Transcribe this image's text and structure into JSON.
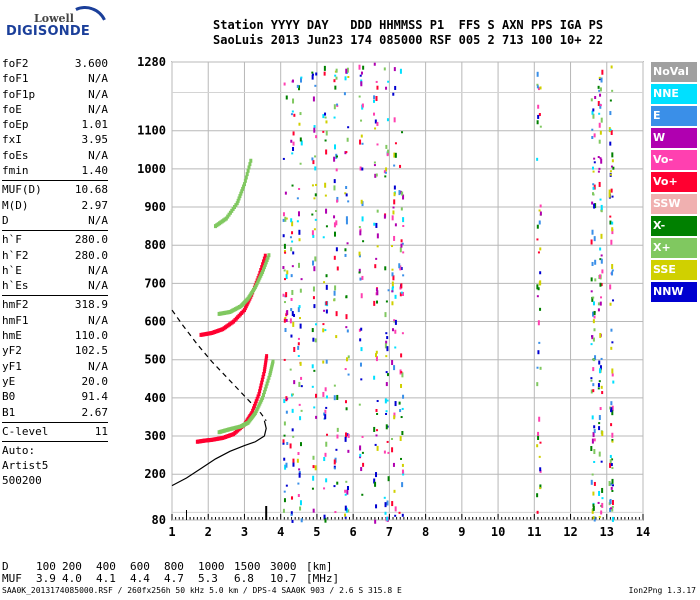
{
  "logo": {
    "top_text": "Lowell",
    "bottom_text": "DIGISONDE"
  },
  "header": {
    "line1": "Station YYYY DAY   DDD HHMMSS P1  FFS S AXN PPS IGA PS",
    "line2": "SaoLuis 2013 Jun23 174 085000 RSF 005 2 713 100 10+ 22"
  },
  "params": {
    "group1": [
      {
        "name": "foF2",
        "value": "3.600"
      },
      {
        "name": "foF1",
        "value": "N/A"
      },
      {
        "name": "foF1p",
        "value": "N/A"
      },
      {
        "name": "foE",
        "value": "N/A"
      },
      {
        "name": "foEp",
        "value": "1.01"
      },
      {
        "name": "fxI",
        "value": "3.95"
      },
      {
        "name": "foEs",
        "value": "N/A"
      },
      {
        "name": "fmin",
        "value": "1.40"
      }
    ],
    "group2": [
      {
        "name": "MUF(D)",
        "value": "10.68"
      },
      {
        "name": "M(D)",
        "value": "2.97"
      },
      {
        "name": "D",
        "value": "N/A"
      }
    ],
    "group3": [
      {
        "name": "h`F",
        "value": "280.0"
      },
      {
        "name": "h`F2",
        "value": "280.0"
      },
      {
        "name": "h`E",
        "value": "N/A"
      },
      {
        "name": "h`Es",
        "value": "N/A"
      }
    ],
    "group4": [
      {
        "name": "hmF2",
        "value": "318.9"
      },
      {
        "name": "hmF1",
        "value": "N/A"
      },
      {
        "name": "hmE",
        "value": "110.0"
      },
      {
        "name": "yF2",
        "value": "102.5"
      },
      {
        "name": "yF1",
        "value": "N/A"
      },
      {
        "name": "yE",
        "value": "20.0"
      },
      {
        "name": "B0",
        "value": "91.4"
      },
      {
        "name": "B1",
        "value": "2.67"
      }
    ],
    "group5": [
      {
        "name": "C-level",
        "value": "11"
      }
    ],
    "auto_label": "Auto:",
    "artist": "Artist5",
    "artist_code": "500200"
  },
  "legend": [
    {
      "label": "NoVal",
      "color": "#a0a0a0"
    },
    {
      "label": "NNE",
      "color": "#00e0ff"
    },
    {
      "label": "E",
      "color": "#3a8fe8"
    },
    {
      "label": "W",
      "color": "#b000b0"
    },
    {
      "label": "Vo-",
      "color": "#ff40b0"
    },
    {
      "label": "Vo+",
      "color": "#ff0030"
    },
    {
      "label": "SSW",
      "color": "#f0b0b0"
    },
    {
      "label": "X-",
      "color": "#008000"
    },
    {
      "label": "X+",
      "color": "#80c860"
    },
    {
      "label": "SSE",
      "color": "#d0d000"
    },
    {
      "label": "NNW",
      "color": "#0000d0"
    }
  ],
  "footer": {
    "d_label": "D",
    "d_values": [
      "100",
      "200",
      "400",
      "600",
      "800",
      "1000",
      "1500",
      "3000"
    ],
    "d_unit": "[km]",
    "muf_label": "MUF",
    "muf_values": [
      "3.9",
      "4.0",
      "4.1",
      "4.4",
      "4.7",
      "5.3",
      "6.8",
      "10.7"
    ],
    "muf_unit": "[MHz]",
    "source_line": "SAA0K_2013174085000.RSF / 260fx256h 50 kHz 5.0 km / DPS-4 SAA0K 903 / 2.6 S 315.8 E",
    "version": "Ion2Png 1.3.17"
  },
  "chart_data": {
    "type": "scatter",
    "xlim": [
      1,
      14
    ],
    "ylim": [
      80,
      1280
    ],
    "x_ticks": [
      "1",
      "2",
      "3",
      "4",
      "5",
      "6",
      "7",
      "8",
      "9",
      "10",
      "11",
      "12",
      "13",
      "14"
    ],
    "y_ticks": [
      "80",
      "200",
      "300",
      "400",
      "500",
      "600",
      "700",
      "800",
      "900",
      "1000",
      "1100",
      "1280"
    ],
    "grid": true,
    "y_scale": "linear",
    "traces": [
      {
        "name": "O-trace F2",
        "color": "#ff0030",
        "x": [
          1.7,
          1.9,
          2.1,
          2.4,
          2.7,
          3.0,
          3.2,
          3.4,
          3.55,
          3.62
        ],
        "y": [
          285,
          288,
          290,
          295,
          305,
          330,
          360,
          410,
          470,
          515
        ]
      },
      {
        "name": "X-trace F2",
        "color": "#80c860",
        "x": [
          2.3,
          2.6,
          2.9,
          3.1,
          3.3,
          3.5,
          3.7,
          3.8
        ],
        "y": [
          310,
          318,
          325,
          335,
          360,
          400,
          460,
          500
        ]
      },
      {
        "name": "O-trace 2F",
        "color": "#ff0030",
        "x": [
          1.8,
          2.1,
          2.4,
          2.7,
          3.0,
          3.2,
          3.4,
          3.6
        ],
        "y": [
          565,
          570,
          580,
          600,
          630,
          670,
          720,
          780
        ]
      },
      {
        "name": "X-trace 2F",
        "color": "#80c860",
        "x": [
          2.3,
          2.6,
          2.9,
          3.1,
          3.3,
          3.5,
          3.7
        ],
        "y": [
          620,
          625,
          640,
          660,
          690,
          730,
          780
        ]
      },
      {
        "name": "O-trace 3F",
        "color": "#80c860",
        "x": [
          2.2,
          2.5,
          2.8,
          3.0,
          3.2
        ],
        "y": [
          850,
          870,
          910,
          960,
          1030
        ]
      }
    ],
    "profile_solid": {
      "x": [
        1.0,
        1.4,
        1.8,
        2.2,
        2.6,
        3.0,
        3.3,
        3.55,
        3.6,
        3.55
      ],
      "y": [
        170,
        190,
        215,
        240,
        260,
        275,
        285,
        300,
        320,
        340
      ]
    },
    "profile_dashed": {
      "x": [
        1.0,
        1.3,
        1.7,
        2.1,
        2.5,
        2.9,
        3.2,
        3.45,
        3.6
      ],
      "y": [
        630,
        590,
        540,
        495,
        455,
        415,
        385,
        360,
        340
      ]
    },
    "noise_columns_x": [
      4.1,
      4.3,
      4.5,
      4.9,
      5.2,
      5.5,
      5.8,
      6.2,
      6.6,
      6.9,
      7.1,
      7.3,
      11.1,
      12.6,
      12.8,
      13.1
    ],
    "marker_foF2": 3.6,
    "marker_fmin": 1.4
  }
}
